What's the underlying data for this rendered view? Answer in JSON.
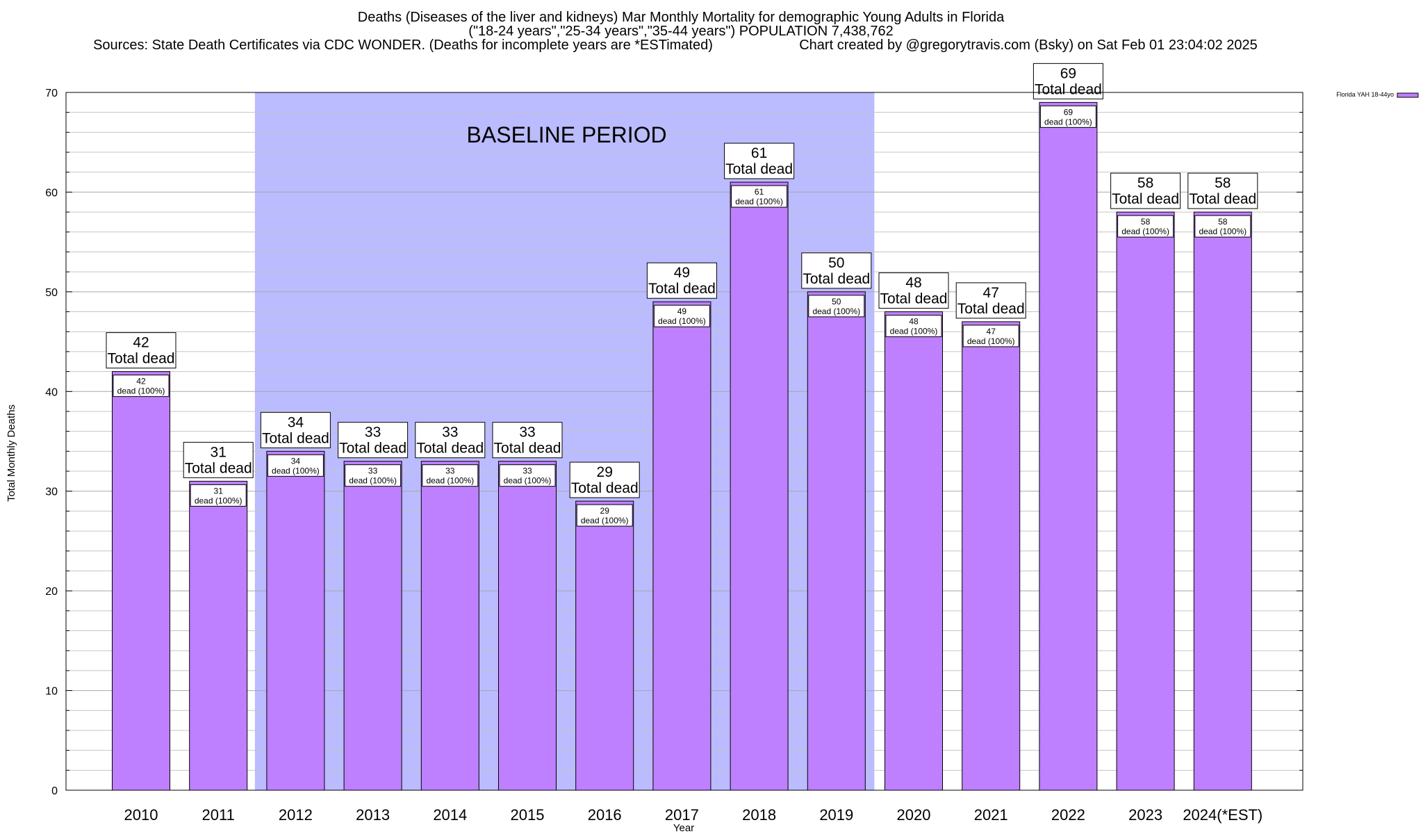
{
  "chart_data": {
    "type": "bar",
    "title": "Deaths (Diseases of the liver and kidneys) Mar Monthly Mortality for demographic Young Adults in Florida",
    "subtitle": "(\"18-24 years\",\"25-34 years\",\"35-44 years\") POPULATION 7,438,762",
    "sources": "Sources: State Death Certificates via CDC WONDER. (Deaths for incomplete years are *ESTimated)",
    "credit": "Chart created by @gregorytravis.com (Bsky) on Sat Feb 01 23:04:02 2025",
    "xlabel": "Year",
    "ylabel": "Total Monthly Deaths",
    "ylim": [
      0,
      70
    ],
    "yticks": [
      0,
      10,
      20,
      30,
      40,
      50,
      60,
      70
    ],
    "grid": true,
    "legend_position": "top-right",
    "categories": [
      "2010",
      "2011",
      "2012",
      "2013",
      "2014",
      "2015",
      "2016",
      "2017",
      "2018",
      "2019",
      "2020",
      "2021",
      "2022",
      "2023",
      "2024(*EST)"
    ],
    "series": [
      {
        "name": "Florida YAH 18-44yo",
        "color": "#bf80ff",
        "values": [
          42,
          31,
          34,
          33,
          33,
          33,
          29,
          49,
          61,
          50,
          48,
          47,
          69,
          58,
          58
        ]
      }
    ],
    "total_label": "Total dead",
    "inner_label": "dead (100%)",
    "baseline": {
      "label": "BASELINE PERIOD",
      "from": "2012",
      "to": "2019",
      "color": "#bbbbff"
    }
  }
}
